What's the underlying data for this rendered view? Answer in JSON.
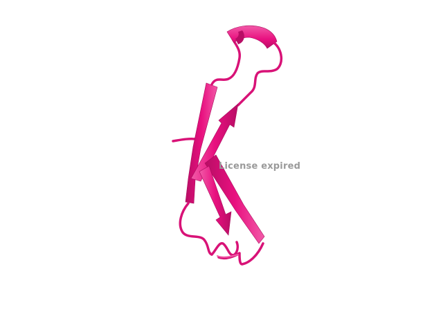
{
  "viewer": {
    "watermark_text": "License expired",
    "colors": {
      "background": "#ffffff",
      "ribbon": "#e8107f",
      "ribbon_light": "#f25aa8",
      "ribbon_dark": "#b80d65",
      "watermark": "#9a9a9a"
    },
    "structure": {
      "representation": "cartoon",
      "strands": 3,
      "helices": 1
    }
  }
}
